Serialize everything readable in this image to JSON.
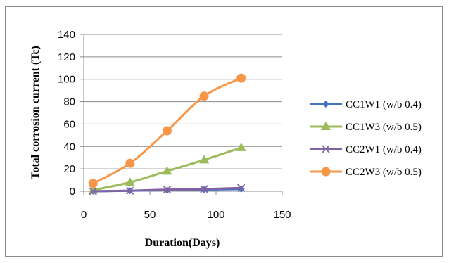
{
  "chart_data": {
    "type": "line",
    "xlabel": "Duration(Days)",
    "ylabel": "Total corrosion current  (Tc)",
    "xlim": [
      0,
      150
    ],
    "ylim": [
      0,
      140
    ],
    "x_ticks": [
      0,
      50,
      100,
      150
    ],
    "y_ticks": [
      0,
      20,
      40,
      60,
      80,
      100,
      120,
      140
    ],
    "grid": "horizontal",
    "legend_position": "right",
    "series": [
      {
        "name": "CC1W1 (w/b 0.4)",
        "color": "#4472c4",
        "marker": "diamond",
        "x": [
          7,
          35,
          63,
          91,
          119
        ],
        "y": [
          0,
          0.5,
          1,
          1.5,
          2
        ]
      },
      {
        "name": "CC1W3 (w/b 0.5)",
        "color": "#9bbb59",
        "marker": "triangle",
        "x": [
          7,
          35,
          63,
          91,
          119
        ],
        "y": [
          1,
          8,
          18,
          28,
          39
        ]
      },
      {
        "name": "CC2W1 (w/b 0.4)",
        "color": "#8064a2",
        "marker": "x",
        "x": [
          7,
          35,
          63,
          91,
          119
        ],
        "y": [
          0,
          0.5,
          1.5,
          2,
          3
        ]
      },
      {
        "name": "CC2W3 (w/b 0.5)",
        "color": "#f79646",
        "marker": "circle",
        "x": [
          7,
          35,
          63,
          91,
          119
        ],
        "y": [
          7,
          25,
          54,
          85,
          101
        ]
      }
    ]
  }
}
